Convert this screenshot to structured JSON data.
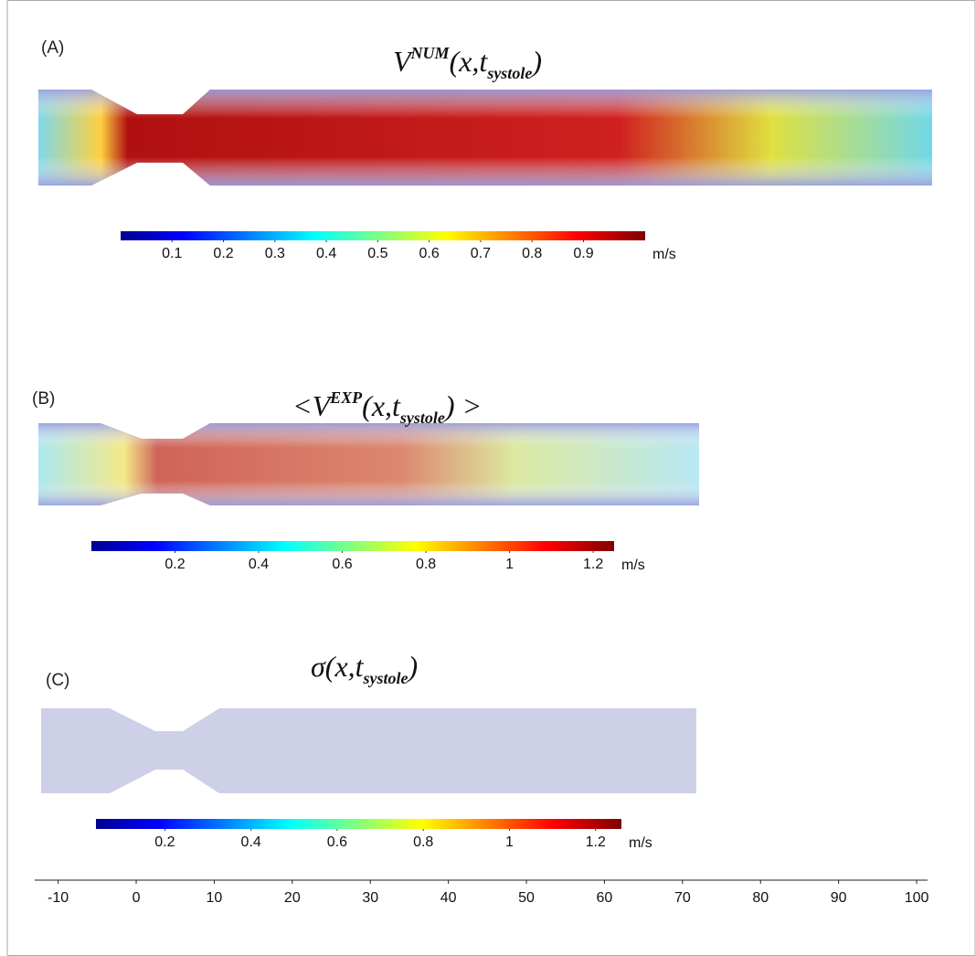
{
  "panels": [
    {
      "label": "(A)",
      "title": {
        "pre": "V",
        "sup": "NUM",
        "mid": "(x,t",
        "sub": "systole",
        "post": ")"
      },
      "colorbar": {
        "clim": [
          0,
          1.02
        ],
        "ticks": [
          0.1,
          0.2,
          0.3,
          0.4,
          0.5,
          0.6,
          0.7,
          0.8,
          0.9
        ],
        "unit": "m/s"
      }
    },
    {
      "label": "(B)",
      "title": {
        "pre": "<V",
        "sup": "EXP",
        "mid": "(x,t",
        "sub": "systole",
        "post": ") >"
      },
      "colorbar": {
        "clim": [
          0,
          1.25
        ],
        "ticks": [
          0.2,
          0.4,
          0.6,
          0.8,
          1,
          1.2
        ],
        "unit": "m/s"
      }
    },
    {
      "label": "(C)",
      "title": {
        "pre": "σ(x,t",
        "sub": "systole",
        "post": ")"
      },
      "colorbar": {
        "clim": [
          0.04,
          1.26
        ],
        "ticks": [
          0.2,
          0.4,
          0.6,
          0.8,
          1,
          1.2
        ],
        "unit": "m/s"
      }
    }
  ],
  "x_axis": {
    "xlim": [
      -13,
      101.4
    ],
    "xticks": [
      -10,
      0,
      10,
      20,
      30,
      40,
      50,
      60,
      70,
      80,
      90,
      100
    ]
  }
}
